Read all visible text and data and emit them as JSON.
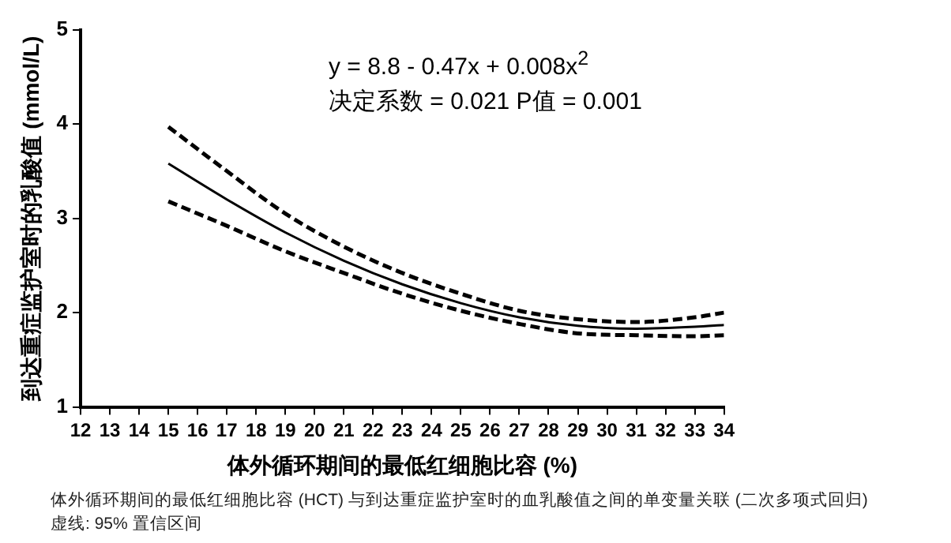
{
  "chart_data": {
    "type": "line",
    "xlabel": "体外循环期间的最低红细胞比容 (%)",
    "ylabel": "到达重症监护室时的乳酸值 (mmol/L)",
    "annotations": [
      "y = 8.8 - 0.47x + 0.008x$^{2}$",
      "决定系数 = 0.021   P值 = 0.001",
      "体外循环期间的最低红细胞比容 (HCT) 与到达重症监护室时的血乳酸值之间的单变量关联 (二次多项式回归)",
      "虚线: 95% 置信区间"
    ],
    "x": [
      15,
      17,
      19,
      21,
      23,
      25,
      27,
      29,
      31,
      33,
      34
    ],
    "series": [
      {
        "color": "#000000",
        "line_style": "solid",
        "values": [
          3.58,
          3.2,
          2.85,
          2.55,
          2.3,
          2.1,
          1.95,
          1.86,
          1.83,
          1.85,
          1.87
        ]
      },
      {
        "color": "#000000",
        "line_style": "dashed",
        "values": [
          3.97,
          3.5,
          3.05,
          2.7,
          2.42,
          2.2,
          2.02,
          1.93,
          1.9,
          1.95,
          2.0
        ]
      },
      {
        "color": "#000000",
        "line_style": "dashed",
        "values": [
          3.18,
          2.92,
          2.65,
          2.42,
          2.2,
          2.02,
          1.88,
          1.78,
          1.76,
          1.75,
          1.76
        ]
      }
    ],
    "xlim": [
      12,
      34
    ],
    "xticks": [
      12,
      13,
      14,
      15,
      16,
      17,
      18,
      19,
      20,
      21,
      22,
      23,
      24,
      25,
      26,
      27,
      28,
      29,
      30,
      31,
      32,
      33,
      34
    ],
    "ylim": [
      1,
      5
    ],
    "yticks": [
      1,
      2,
      3,
      4,
      5
    ],
    "grid": false,
    "legend": false,
    "marker": "none"
  }
}
